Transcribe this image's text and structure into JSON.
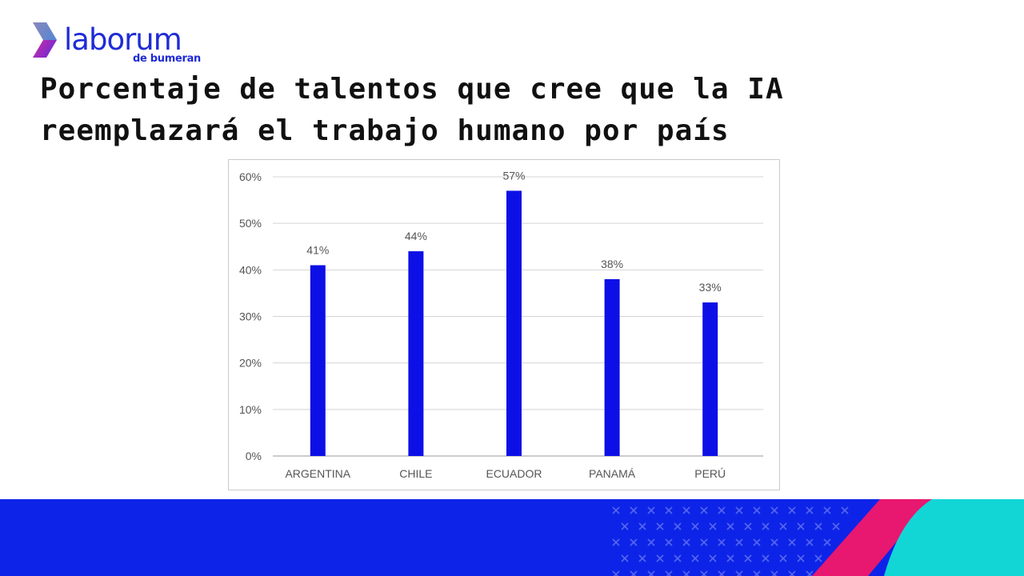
{
  "brand": {
    "name": "laborum",
    "tagline": "de bumeran",
    "primary_color": "#1f2bd6",
    "accent_gradient": [
      "#ff2d8a",
      "#2ad4e0"
    ]
  },
  "page": {
    "title": "Porcentaje de talentos que cree que la IA reemplazará el trabajo humano por país"
  },
  "footer": {
    "band_color": "#0d24e8",
    "stripe_pink": "#e8176f",
    "stripe_cyan": "#12d6d6",
    "pattern_icon": "x-mark-icon"
  },
  "chart_data": {
    "type": "bar",
    "categories": [
      "ARGENTINA",
      "CHILE",
      "ECUADOR",
      "PANAMÁ",
      "PERÚ"
    ],
    "values": [
      41,
      44,
      57,
      38,
      33
    ],
    "data_labels": [
      "41%",
      "44%",
      "57%",
      "38%",
      "33%"
    ],
    "yticks": [
      "0%",
      "10%",
      "20%",
      "30%",
      "40%",
      "50%",
      "60%"
    ],
    "ylim": [
      0,
      60
    ],
    "grid": true,
    "bar_color": "#0d10e6",
    "title": "",
    "xlabel": "",
    "ylabel": ""
  }
}
